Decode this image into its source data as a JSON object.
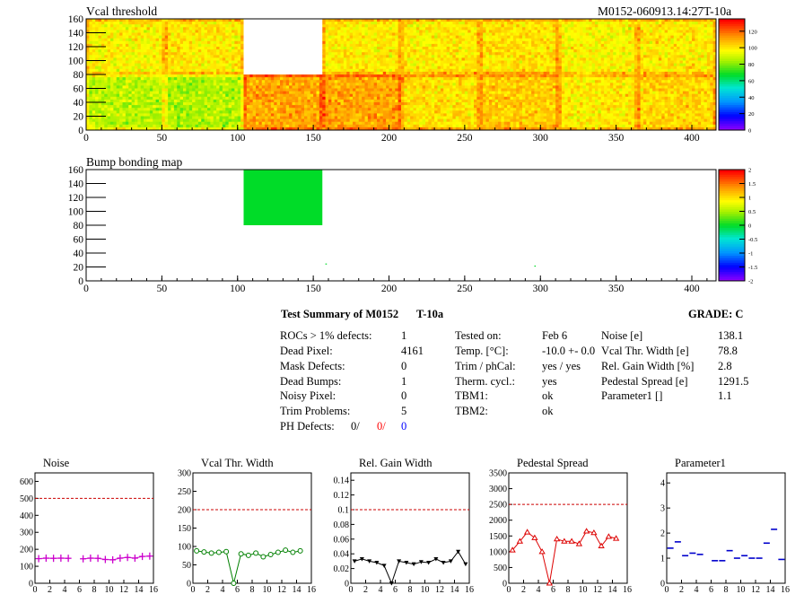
{
  "header": {
    "left_title": "Vcal threshold",
    "right_title": "M0152-060913.14:27T-10a"
  },
  "chart_data": [
    {
      "type": "heatmap",
      "title": "Vcal threshold",
      "xlim": [
        0,
        416
      ],
      "ylim": [
        0,
        160
      ],
      "x_ticks": [
        "0",
        "50",
        "100",
        "150",
        "200",
        "250",
        "300",
        "350",
        "400"
      ],
      "y_ticks": [
        "0",
        "20",
        "40",
        "60",
        "80",
        "100",
        "120",
        "140",
        "160"
      ],
      "z_palette_ticks": [
        "0",
        "20",
        "40",
        "60",
        "80",
        "100",
        "120"
      ],
      "zlim": [
        0,
        135
      ],
      "roc_grid": {
        "cols": 8,
        "rows": 2,
        "cols_width": 52,
        "rows_height": 80
      },
      "roc_mean_values": {
        "top": [
          98,
          100,
          null,
          100,
          100,
          102,
          98,
          100
        ],
        "bottom": [
          88,
          86,
          112,
          112,
          102,
          106,
          100,
          104
        ]
      },
      "empty_rocs": [
        {
          "col": 2,
          "row": "top"
        }
      ]
    },
    {
      "type": "heatmap",
      "title": "Bump bonding map",
      "xlim": [
        0,
        416
      ],
      "ylim": [
        0,
        160
      ],
      "x_ticks": [
        "0",
        "50",
        "100",
        "150",
        "200",
        "250",
        "300",
        "350",
        "400"
      ],
      "y_ticks": [
        "0",
        "20",
        "40",
        "60",
        "80",
        "100",
        "120",
        "140",
        "160"
      ],
      "z_palette_ticks": [
        "-2",
        "-1.5",
        "-1",
        "-0.5",
        "0",
        "0.5",
        "1",
        "1.5",
        "2"
      ],
      "zlim": [
        -2,
        2
      ],
      "filled_regions": [
        {
          "x": [
            104,
            156
          ],
          "y": [
            80,
            160
          ],
          "value": 0
        }
      ],
      "isolated_pixels": [
        {
          "x": 158,
          "y": 25,
          "value": 0
        },
        {
          "x": 296,
          "y": 22,
          "value": 0
        }
      ]
    },
    {
      "type": "line",
      "title": "Noise",
      "marker": "cross",
      "color": "#cc00cc",
      "x": [
        0,
        1,
        2,
        3,
        4,
        5,
        6,
        7,
        8,
        9,
        10,
        11,
        12,
        13,
        14,
        15
      ],
      "values": [
        145,
        148,
        147,
        148,
        147,
        null,
        144,
        148,
        147,
        140,
        138,
        148,
        152,
        148,
        158,
        160
      ],
      "ylim": [
        0,
        650
      ],
      "y_ticks": [
        "0",
        "100",
        "200",
        "300",
        "400",
        "500",
        "600"
      ],
      "x_ticks": [
        "0",
        "2",
        "4",
        "6",
        "8",
        "10",
        "12",
        "14",
        "16"
      ],
      "threshold": 500
    },
    {
      "type": "line",
      "title": "Vcal Thr. Width",
      "marker": "circle",
      "color": "#008000",
      "x": [
        0,
        1,
        2,
        3,
        4,
        5,
        6,
        7,
        8,
        9,
        10,
        11,
        12,
        13,
        14,
        15
      ],
      "values": [
        88,
        85,
        82,
        84,
        86,
        0,
        80,
        76,
        82,
        72,
        78,
        84,
        90,
        84,
        88,
        null
      ],
      "ylim": [
        0,
        300
      ],
      "y_ticks": [
        "0",
        "50",
        "100",
        "150",
        "200",
        "250",
        "300"
      ],
      "x_ticks": [
        "0",
        "2",
        "4",
        "6",
        "8",
        "10",
        "12",
        "14",
        "16"
      ],
      "threshold": 200
    },
    {
      "type": "line",
      "title": "Rel. Gain Width",
      "marker": "triangle-down",
      "color": "#000000",
      "x": [
        0,
        1,
        2,
        3,
        4,
        5,
        6,
        7,
        8,
        9,
        10,
        11,
        12,
        13,
        14,
        15
      ],
      "values": [
        0.03,
        0.033,
        0.03,
        0.028,
        0.024,
        0,
        0.03,
        0.028,
        0.026,
        0.029,
        0.028,
        0.033,
        0.028,
        0.03,
        0.043,
        0.026
      ],
      "ylim": [
        0,
        0.15
      ],
      "y_ticks": [
        "0",
        "0.02",
        "0.04",
        "0.06",
        "0.08",
        "0.1",
        "0.12",
        "0.14"
      ],
      "x_ticks": [
        "0",
        "2",
        "4",
        "6",
        "8",
        "10",
        "12",
        "14",
        "16"
      ],
      "threshold": 0.1
    },
    {
      "type": "line",
      "title": "Pedestal Spread",
      "marker": "triangle-up",
      "color": "#dd0000",
      "x": [
        0,
        1,
        2,
        3,
        4,
        5,
        6,
        7,
        8,
        9,
        10,
        11,
        12,
        13,
        14,
        15
      ],
      "values": [
        1050,
        1330,
        1620,
        1440,
        1000,
        0,
        1400,
        1330,
        1330,
        1250,
        1650,
        1600,
        1180,
        1480,
        1420,
        null
      ],
      "ylim": [
        0,
        3500
      ],
      "y_ticks": [
        "0",
        "500",
        "1000",
        "1500",
        "2000",
        "2500",
        "3000",
        "3500"
      ],
      "x_ticks": [
        "0",
        "2",
        "4",
        "6",
        "8",
        "10",
        "12",
        "14",
        "16"
      ],
      "threshold": 2500
    },
    {
      "type": "scatter",
      "title": "Parameter1",
      "marker": "dash",
      "color": "#0000cc",
      "x": [
        0,
        1,
        2,
        3,
        4,
        5,
        6,
        7,
        8,
        9,
        10,
        11,
        12,
        13,
        14,
        15
      ],
      "values": [
        1.4,
        1.65,
        1.1,
        1.2,
        1.15,
        null,
        0.9,
        0.9,
        1.3,
        1.0,
        1.1,
        1.0,
        1.0,
        1.6,
        2.15,
        0.95
      ],
      "ylim": [
        0,
        4.4
      ],
      "y_ticks": [
        "0",
        "1",
        "2",
        "3",
        "4"
      ],
      "x_ticks": [
        "0",
        "2",
        "4",
        "6",
        "8",
        "10",
        "12",
        "14",
        "16"
      ]
    }
  ],
  "summary": {
    "title": "Test Summary of M0152",
    "temp_label": "T-10a",
    "grade": "GRADE:  C",
    "col1": [
      {
        "label": "ROCs > 1% defects:",
        "value": "1"
      },
      {
        "label": "Dead Pixel:",
        "value": "4161"
      },
      {
        "label": "Mask Defects:",
        "value": "0"
      },
      {
        "label": "Dead Bumps:",
        "value": "1"
      },
      {
        "label": "Noisy Pixel:",
        "value": "0"
      },
      {
        "label": "Trim Problems:",
        "value": "5"
      }
    ],
    "ph_defects": {
      "label": "PH Defects:",
      "v1": "0/",
      "v2": "0/",
      "v3": "0",
      "c2": "#ff0000",
      "c3": "#0000ff"
    },
    "col2": [
      {
        "label": "Tested on:",
        "value": "Feb 6"
      },
      {
        "label": "Temp. [°C]:",
        "value": "-10.0 +- 0.0"
      },
      {
        "label": "Trim / phCal:",
        "value": "yes / yes"
      },
      {
        "label": "Therm. cycl.:",
        "value": "yes"
      },
      {
        "label": "TBM1:",
        "value": "ok"
      },
      {
        "label": "TBM2:",
        "value": "ok"
      }
    ],
    "col3": [
      {
        "label": "Noise [e]",
        "value": "138.1"
      },
      {
        "label": "Vcal Thr. Width [e]",
        "value": "78.8"
      },
      {
        "label": "Rel. Gain Width [%]",
        "value": "2.8"
      },
      {
        "label": "Pedestal Spread [e]",
        "value": "1291.5"
      },
      {
        "label": "Parameter1 []",
        "value": "1.1"
      }
    ]
  }
}
